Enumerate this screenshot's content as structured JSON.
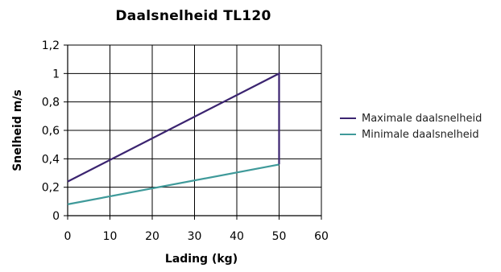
{
  "chart_data": {
    "type": "line",
    "title": "Daalsnelheid TL120",
    "xlabel": "Lading (kg)",
    "ylabel": "Snelheid m/s",
    "xlim": [
      0,
      60
    ],
    "ylim": [
      0,
      1.2
    ],
    "x_ticks": [
      "0",
      "10",
      "20",
      "30",
      "40",
      "50",
      "60"
    ],
    "y_ticks": [
      "0",
      "0,2",
      "0,4",
      "0,6",
      "0,8",
      "1",
      "1,2"
    ],
    "grid": true,
    "legend_position": "right",
    "series": [
      {
        "name": "Maximale daalsnelheid",
        "color": "#3b2470",
        "x": [
          0,
          50,
          50
        ],
        "y": [
          0.24,
          1.0,
          0.36
        ]
      },
      {
        "name": "Minimale daalsnelheid",
        "color": "#3f9a9a",
        "x": [
          0,
          50
        ],
        "y": [
          0.08,
          0.36
        ]
      }
    ]
  }
}
